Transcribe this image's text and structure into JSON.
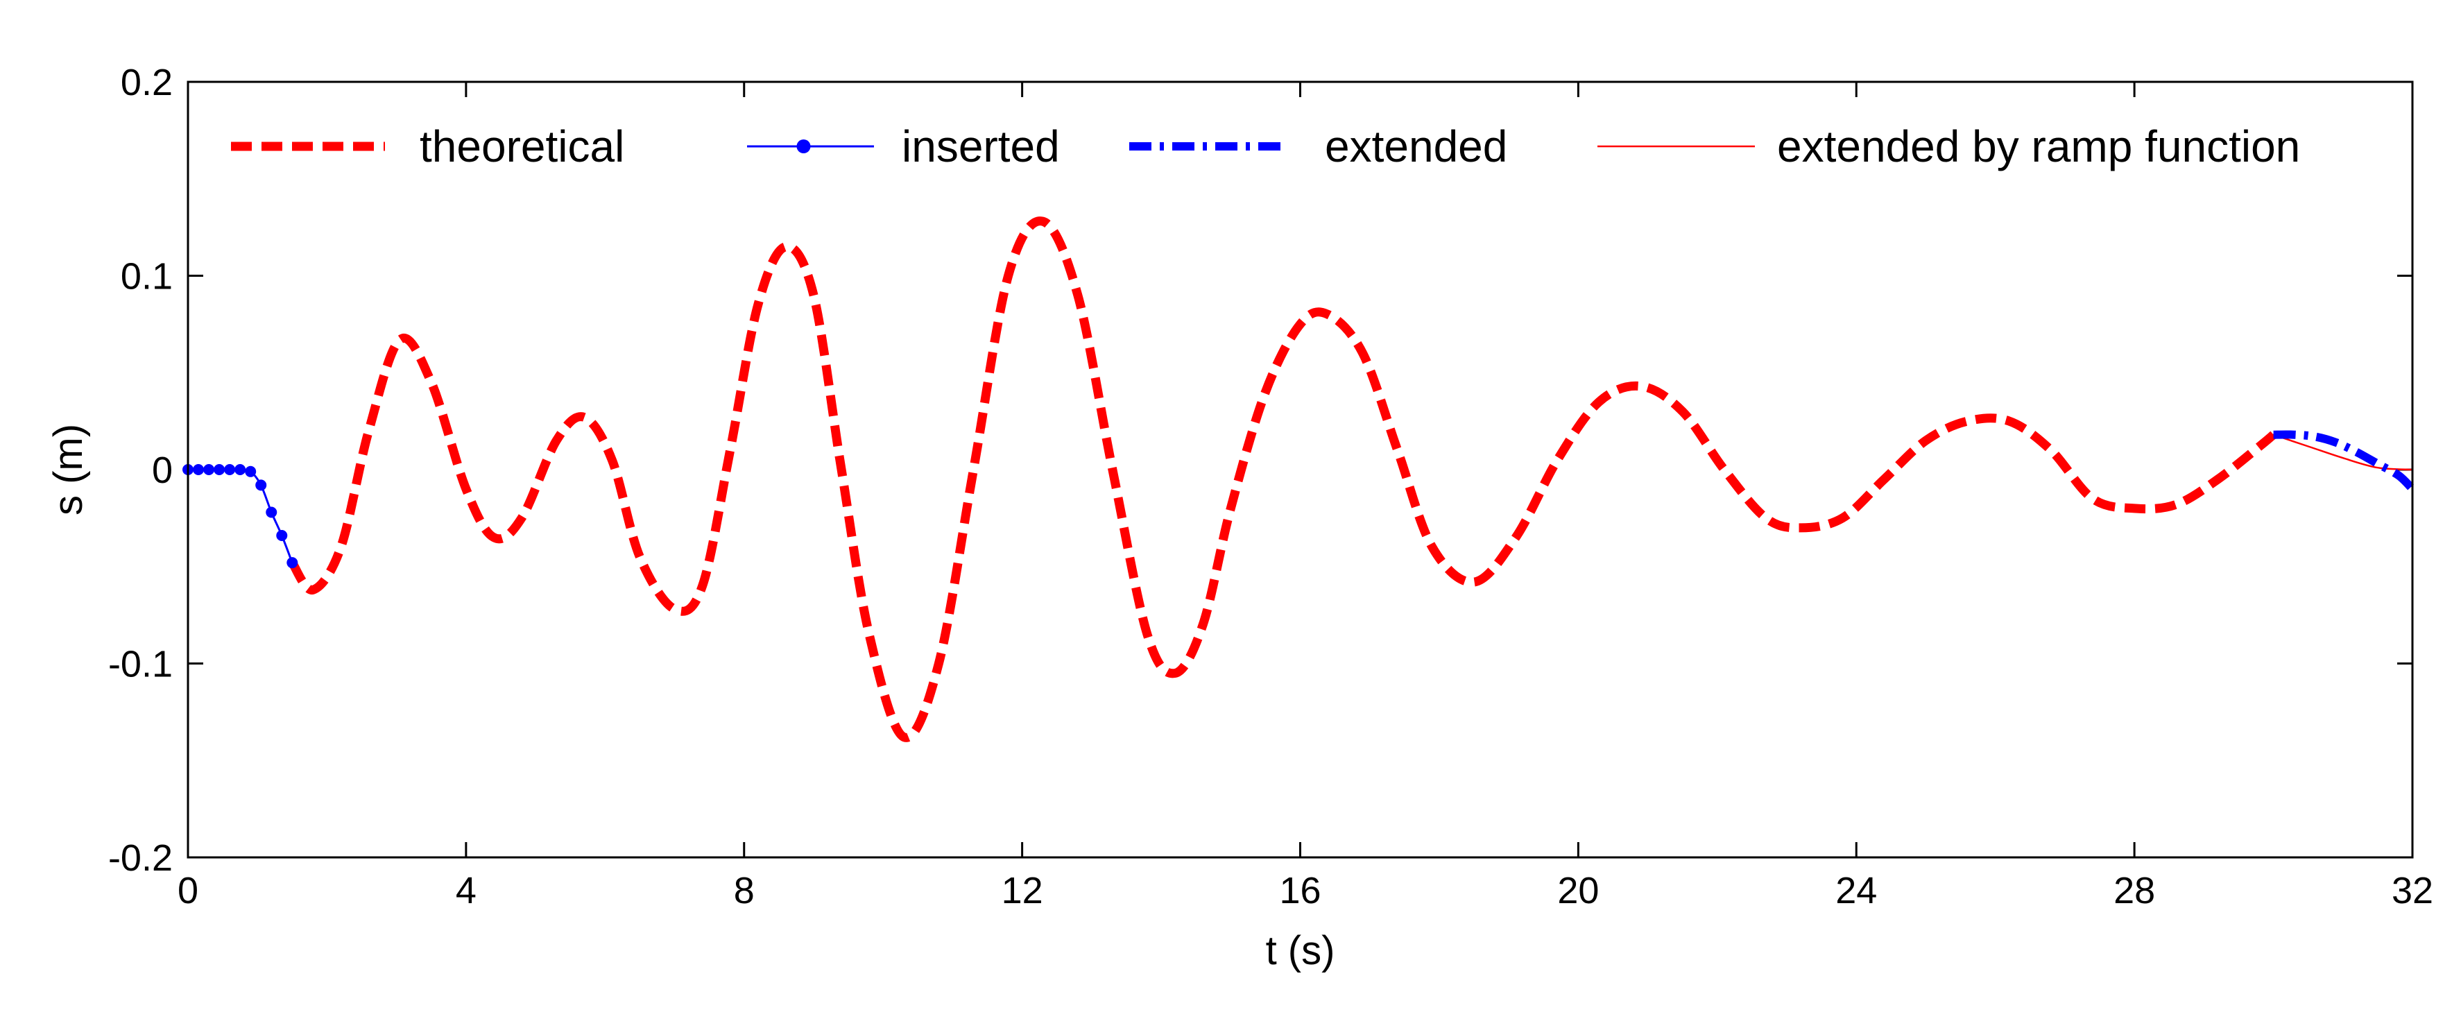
{
  "chart_data": {
    "type": "line",
    "title": "",
    "xlabel": "t (s)",
    "ylabel": "s (m)",
    "xlim": [
      0,
      32
    ],
    "ylim": [
      -0.2,
      0.2
    ],
    "x_ticks": [
      0,
      4,
      8,
      12,
      16,
      20,
      24,
      28,
      32
    ],
    "x_tick_labels": [
      "0",
      "4",
      "8",
      "12",
      "16",
      "20",
      "24",
      "28",
      "32"
    ],
    "y_ticks": [
      -0.2,
      -0.1,
      0,
      0.1,
      0.2
    ],
    "y_tick_labels": [
      "-0.2",
      "-0.1",
      "0",
      "0.1",
      "0.2"
    ],
    "grid": false,
    "box": true,
    "legend": {
      "placement": "top",
      "orientation": "horizontal",
      "entries": [
        "theoretical",
        "inserted",
        "extended",
        "extended by ramp function"
      ]
    },
    "series": [
      {
        "name": "theoretical",
        "style": "dashed",
        "color": "#ff0000",
        "x": [
          1.5,
          1.8,
          2.2,
          2.6,
          3.05,
          3.5,
          4.0,
          4.4,
          4.8,
          5.3,
          5.7,
          6.1,
          6.5,
          7.0,
          7.4,
          7.8,
          8.2,
          8.6,
          9.0,
          9.4,
          9.8,
          10.3,
          10.8,
          11.3,
          11.8,
          12.3,
          12.8,
          13.3,
          13.8,
          14.2,
          14.6,
          15.0,
          15.5,
          16.0,
          16.4,
          16.9,
          17.4,
          17.9,
          18.5,
          19.1,
          19.7,
          20.3,
          20.9,
          21.5,
          22.1,
          22.7,
          23.2,
          23.8,
          24.4,
          25.0,
          25.6,
          26.2,
          26.8,
          27.4,
          28.0,
          28.6,
          29.2,
          29.8,
          30.0
        ],
        "y": [
          -0.048,
          -0.062,
          -0.04,
          0.02,
          0.067,
          0.045,
          -0.01,
          -0.035,
          -0.025,
          0.015,
          0.027,
          0.005,
          -0.045,
          -0.072,
          -0.06,
          0.01,
          0.085,
          0.115,
          0.09,
          0.0,
          -0.085,
          -0.138,
          -0.1,
          0.0,
          0.1,
          0.128,
          0.09,
          0.0,
          -0.085,
          -0.105,
          -0.08,
          -0.02,
          0.04,
          0.075,
          0.08,
          0.06,
          0.01,
          -0.04,
          -0.058,
          -0.035,
          0.005,
          0.035,
          0.043,
          0.03,
          0.0,
          -0.025,
          -0.03,
          -0.025,
          -0.005,
          0.015,
          0.025,
          0.025,
          0.01,
          -0.015,
          -0.02,
          -0.018,
          -0.005,
          0.012,
          0.018
        ]
      },
      {
        "name": "inserted",
        "style": "solid-with-dots",
        "color": "#0000ff",
        "x": [
          0.0,
          0.15,
          0.3,
          0.45,
          0.6,
          0.75,
          0.9,
          1.05,
          1.2,
          1.35,
          1.5
        ],
        "y": [
          0.0,
          0.0,
          0.0,
          0.0,
          0.0,
          0.0,
          -0.001,
          -0.008,
          -0.022,
          -0.034,
          -0.048
        ]
      },
      {
        "name": "extended",
        "style": "dash-dot",
        "color": "#0000ff",
        "x": [
          30.0,
          30.3,
          30.6,
          30.9,
          31.2,
          31.5,
          31.8,
          32.0
        ],
        "y": [
          0.018,
          0.018,
          0.017,
          0.014,
          0.009,
          0.003,
          -0.003,
          -0.01
        ]
      },
      {
        "name": "extended by ramp function",
        "style": "solid-thin",
        "color": "#ff0000",
        "x": [
          30.0,
          30.5,
          31.0,
          31.5,
          32.0
        ],
        "y": [
          0.018,
          0.012,
          0.006,
          0.001,
          0.0
        ]
      }
    ]
  }
}
